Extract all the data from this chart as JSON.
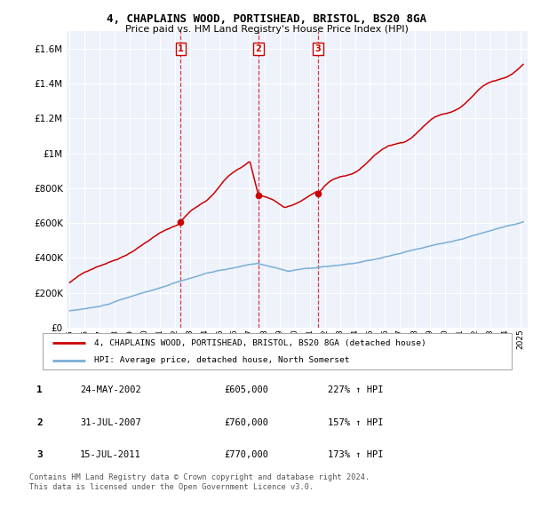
{
  "title": "4, CHAPLAINS WOOD, PORTISHEAD, BRISTOL, BS20 8GA",
  "subtitle": "Price paid vs. HM Land Registry's House Price Index (HPI)",
  "sales": [
    {
      "label": "1",
      "date_num": 2002.39,
      "price": 605000,
      "date_str": "24-MAY-2002",
      "pct": "227%"
    },
    {
      "label": "2",
      "date_num": 2007.58,
      "price": 760000,
      "date_str": "31-JUL-2007",
      "pct": "157%"
    },
    {
      "label": "3",
      "date_num": 2011.54,
      "price": 770000,
      "date_str": "15-JUL-2011",
      "pct": "173%"
    }
  ],
  "red_line_color": "#cc0000",
  "blue_line_color": "#7aaed6",
  "plot_bg_color": "#eef2fb",
  "legend_label_red": "4, CHAPLAINS WOOD, PORTISHEAD, BRISTOL, BS20 8GA (detached house)",
  "legend_label_blue": "HPI: Average price, detached house, North Somerset",
  "footer": "Contains HM Land Registry data © Crown copyright and database right 2024.\nThis data is licensed under the Open Government Licence v3.0.",
  "ylim": [
    0,
    1700000
  ],
  "xlim_start": 1994.8,
  "xlim_end": 2025.5,
  "yticks": [
    0,
    200000,
    400000,
    600000,
    800000,
    1000000,
    1200000,
    1400000,
    1600000
  ],
  "xtick_years": [
    1995,
    1996,
    1997,
    1998,
    1999,
    2000,
    2001,
    2002,
    2003,
    2004,
    2005,
    2006,
    2007,
    2008,
    2009,
    2010,
    2011,
    2012,
    2013,
    2014,
    2015,
    2016,
    2017,
    2018,
    2019,
    2020,
    2021,
    2022,
    2023,
    2024,
    2025
  ]
}
